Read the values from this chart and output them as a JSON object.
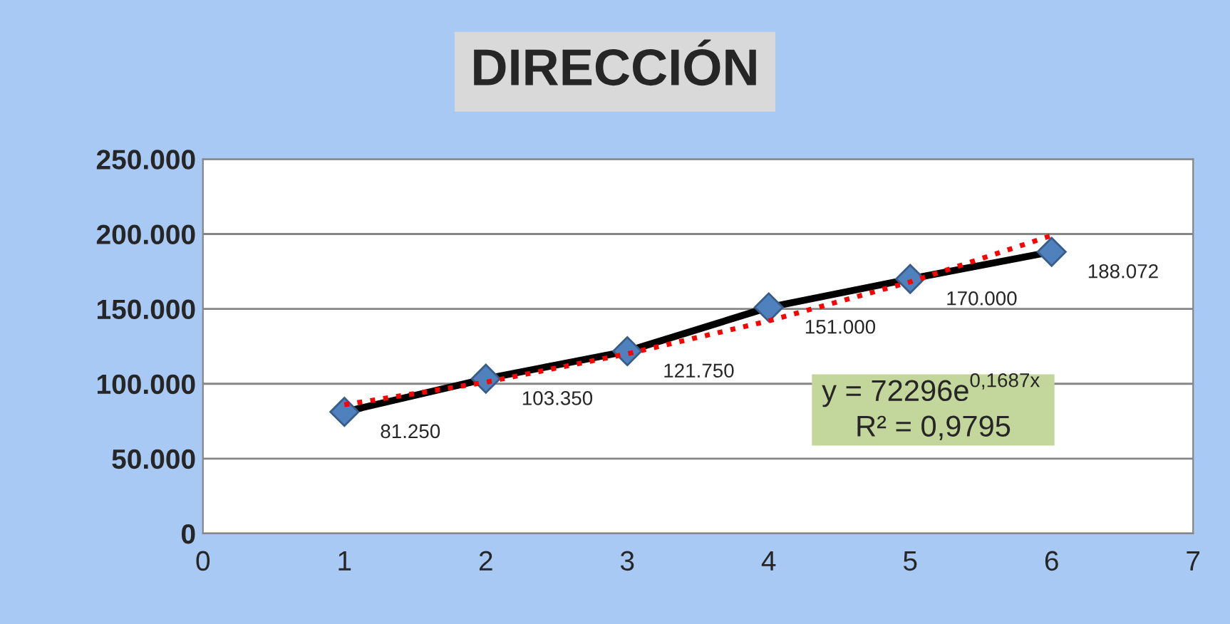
{
  "chart_data": {
    "type": "line",
    "title": "DIRECCIÓN",
    "x": [
      1,
      2,
      3,
      4,
      5,
      6
    ],
    "series": [
      {
        "color": "#000000",
        "colors": [
          "#4f81bd",
          "#4f81bd",
          "#4f81bd",
          "#4f81bd",
          "#4f81bd",
          "#4f81bd"
        ],
        "marker": "diamond",
        "line_style": "solid",
        "values": [
          81250,
          103350,
          121750,
          151000,
          170000,
          188072
        ],
        "value_labels": [
          "81.250",
          "103.350",
          "121.750",
          "151.000",
          "170.000",
          "188.072"
        ]
      },
      {
        "color": "#ff0000",
        "marker": "none",
        "line_style": "dotted",
        "x": [
          1,
          2,
          3,
          4,
          5,
          6
        ],
        "values": [
          86000,
          101000,
          120000,
          142000,
          168000,
          199000
        ]
      }
    ],
    "xlim": [
      0,
      7
    ],
    "xticks": [
      0,
      1,
      2,
      3,
      4,
      5,
      6,
      7
    ],
    "ylim": [
      0,
      250000
    ],
    "yticks": [
      {
        "value": 0,
        "label": "0"
      },
      {
        "value": 50000,
        "label": "50.000"
      },
      {
        "value": 100000,
        "label": "100.000"
      },
      {
        "value": 150000,
        "label": "150.000"
      },
      {
        "value": 200000,
        "label": "200.000"
      },
      {
        "value": 250000,
        "label": "250.000"
      }
    ],
    "grid": "y",
    "annotations": [
      "y = 72296e$^{0,1687x}$",
      "R² = 0,9795"
    ]
  }
}
